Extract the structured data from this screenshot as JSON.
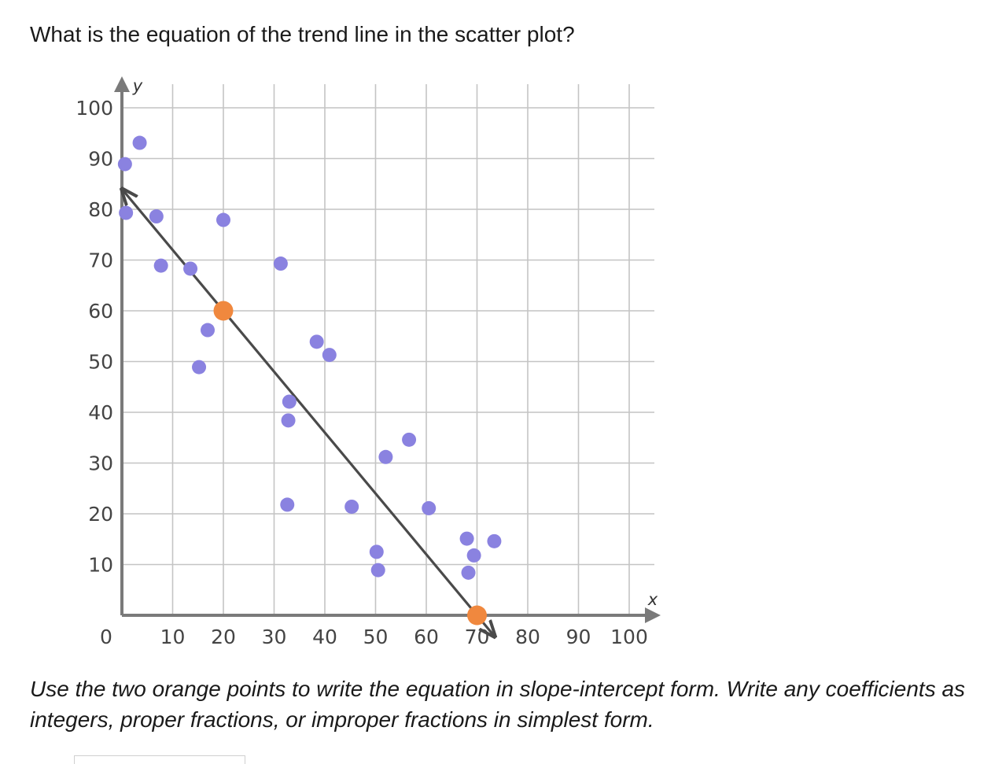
{
  "question": "What is the equation of the trend line in the scatter plot?",
  "instructions": "Use the two orange points to write the equation in slope-intercept form. Write any coefficients as integers, proper fractions, or improper fractions in simplest form.",
  "colors": {
    "scatter_point": "#8a82e0",
    "highlight_point": "#f0883e",
    "trend_line": "#4a4a4a",
    "axis": "#7a7a7a",
    "grid": "#c4c4c4"
  },
  "chart_data": {
    "type": "scatter",
    "xlabel": "x",
    "ylabel": "y",
    "xlim": [
      0,
      100
    ],
    "ylim": [
      0,
      100
    ],
    "grid": true,
    "x_ticks": [
      "0",
      "10",
      "20",
      "30",
      "40",
      "50",
      "60",
      "70",
      "80",
      "90",
      "100"
    ],
    "y_ticks": [
      "10",
      "20",
      "30",
      "40",
      "50",
      "60",
      "70",
      "80",
      "90",
      "100"
    ],
    "points": [
      {
        "x": 0.6,
        "y": 88.9
      },
      {
        "x": 3.5,
        "y": 93.1
      },
      {
        "x": 0.8,
        "y": 79.3
      },
      {
        "x": 6.8,
        "y": 78.6
      },
      {
        "x": 7.7,
        "y": 68.9
      },
      {
        "x": 13.5,
        "y": 68.3
      },
      {
        "x": 20.0,
        "y": 77.9
      },
      {
        "x": 16.9,
        "y": 56.2
      },
      {
        "x": 15.2,
        "y": 48.9
      },
      {
        "x": 31.3,
        "y": 69.3
      },
      {
        "x": 38.4,
        "y": 53.9
      },
      {
        "x": 40.9,
        "y": 51.3
      },
      {
        "x": 33.0,
        "y": 42.1
      },
      {
        "x": 32.8,
        "y": 38.4
      },
      {
        "x": 32.6,
        "y": 21.8
      },
      {
        "x": 45.3,
        "y": 21.4
      },
      {
        "x": 52.0,
        "y": 31.2
      },
      {
        "x": 56.6,
        "y": 34.6
      },
      {
        "x": 60.5,
        "y": 21.1
      },
      {
        "x": 50.2,
        "y": 12.5
      },
      {
        "x": 50.5,
        "y": 8.9
      },
      {
        "x": 68.0,
        "y": 15.1
      },
      {
        "x": 69.4,
        "y": 11.8
      },
      {
        "x": 68.3,
        "y": 8.4
      },
      {
        "x": 73.4,
        "y": 14.6
      }
    ],
    "highlighted_points": [
      {
        "x": 20,
        "y": 60
      },
      {
        "x": 70,
        "y": 0
      }
    ],
    "trend_line": {
      "x_start": 0,
      "y_start": 84,
      "x_end": 73.5,
      "y_end": -4.2
    }
  }
}
